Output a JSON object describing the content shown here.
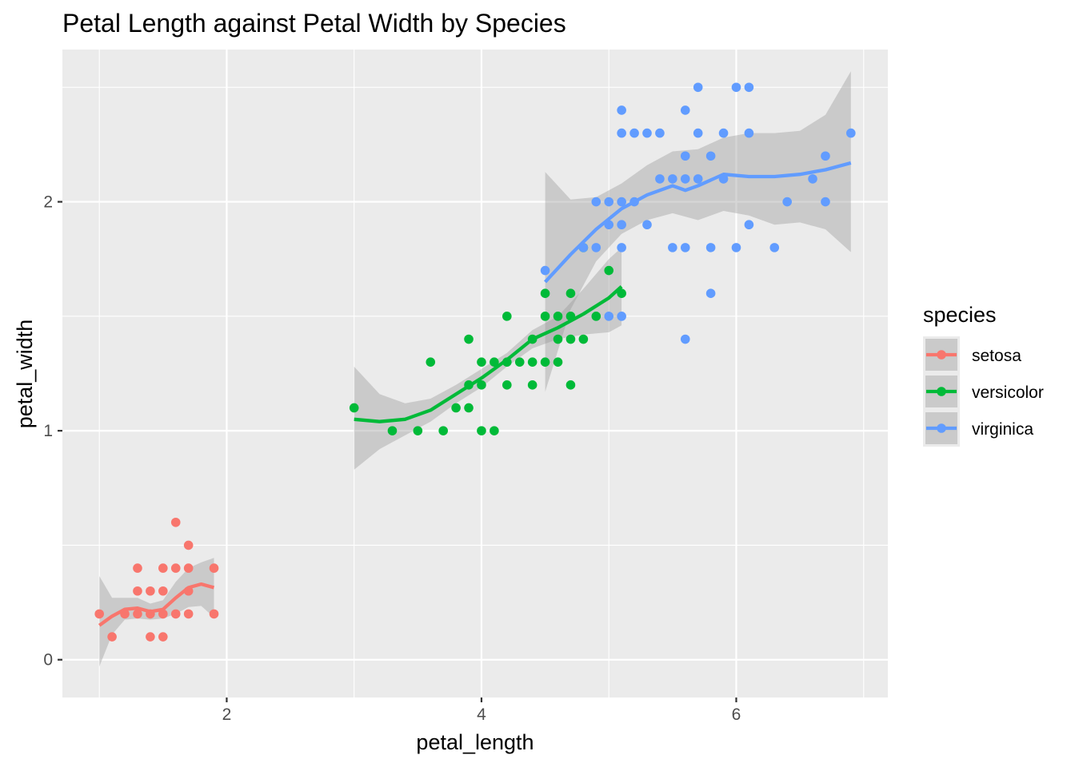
{
  "chart_data": {
    "type": "scatter",
    "title": "Petal Length against Petal Width by Species",
    "xlabel": "petal_length",
    "ylabel": "petal_width",
    "xlim": [
      0.71,
      7.19
    ],
    "ylim": [
      -0.165,
      2.665
    ],
    "x_ticks": [
      2,
      4,
      6
    ],
    "y_ticks": [
      0,
      1,
      2
    ],
    "x_tick_labels": [
      "2",
      "4",
      "6"
    ],
    "y_tick_labels": [
      "0",
      "1",
      "2"
    ],
    "grid": true,
    "legend": {
      "title": "species",
      "position": "right"
    },
    "series": [
      {
        "name": "setosa",
        "color": "#F8766D",
        "points": [
          [
            1.0,
            0.2
          ],
          [
            1.1,
            0.1
          ],
          [
            1.2,
            0.2
          ],
          [
            1.3,
            0.4
          ],
          [
            1.3,
            0.3
          ],
          [
            1.3,
            0.2
          ],
          [
            1.4,
            0.3
          ],
          [
            1.4,
            0.2
          ],
          [
            1.4,
            0.1
          ],
          [
            1.5,
            0.4
          ],
          [
            1.5,
            0.3
          ],
          [
            1.5,
            0.2
          ],
          [
            1.5,
            0.1
          ],
          [
            1.6,
            0.6
          ],
          [
            1.6,
            0.4
          ],
          [
            1.6,
            0.2
          ],
          [
            1.7,
            0.5
          ],
          [
            1.7,
            0.4
          ],
          [
            1.7,
            0.3
          ],
          [
            1.7,
            0.2
          ],
          [
            1.9,
            0.4
          ],
          [
            1.9,
            0.2
          ]
        ],
        "smooth": [
          [
            1.0,
            0.15
          ],
          [
            1.1,
            0.19
          ],
          [
            1.2,
            0.22
          ],
          [
            1.3,
            0.225
          ],
          [
            1.4,
            0.21
          ],
          [
            1.5,
            0.22
          ],
          [
            1.6,
            0.27
          ],
          [
            1.7,
            0.315
          ],
          [
            1.8,
            0.33
          ],
          [
            1.9,
            0.315
          ]
        ],
        "band_upper": [
          [
            1.0,
            0.365
          ],
          [
            1.1,
            0.27
          ],
          [
            1.2,
            0.27
          ],
          [
            1.3,
            0.27
          ],
          [
            1.4,
            0.245
          ],
          [
            1.5,
            0.26
          ],
          [
            1.6,
            0.34
          ],
          [
            1.7,
            0.4
          ],
          [
            1.8,
            0.425
          ],
          [
            1.9,
            0.445
          ]
        ],
        "band_lower": [
          [
            1.0,
            -0.03
          ],
          [
            1.1,
            0.11
          ],
          [
            1.2,
            0.175
          ],
          [
            1.3,
            0.18
          ],
          [
            1.4,
            0.175
          ],
          [
            1.5,
            0.18
          ],
          [
            1.6,
            0.2
          ],
          [
            1.7,
            0.23
          ],
          [
            1.8,
            0.235
          ],
          [
            1.9,
            0.185
          ]
        ]
      },
      {
        "name": "versicolor",
        "color": "#00BA38",
        "points": [
          [
            3.0,
            1.1
          ],
          [
            3.3,
            1.0
          ],
          [
            3.5,
            1.0
          ],
          [
            3.6,
            1.3
          ],
          [
            3.7,
            1.0
          ],
          [
            3.8,
            1.1
          ],
          [
            3.9,
            1.4
          ],
          [
            3.9,
            1.2
          ],
          [
            3.9,
            1.1
          ],
          [
            4.0,
            1.3
          ],
          [
            4.0,
            1.2
          ],
          [
            4.0,
            1.0
          ],
          [
            4.1,
            1.3
          ],
          [
            4.1,
            1.0
          ],
          [
            4.2,
            1.5
          ],
          [
            4.2,
            1.3
          ],
          [
            4.2,
            1.2
          ],
          [
            4.3,
            1.3
          ],
          [
            4.4,
            1.4
          ],
          [
            4.4,
            1.3
          ],
          [
            4.4,
            1.2
          ],
          [
            4.5,
            1.6
          ],
          [
            4.5,
            1.5
          ],
          [
            4.5,
            1.3
          ],
          [
            4.6,
            1.5
          ],
          [
            4.6,
            1.4
          ],
          [
            4.6,
            1.3
          ],
          [
            4.7,
            1.6
          ],
          [
            4.7,
            1.5
          ],
          [
            4.7,
            1.4
          ],
          [
            4.7,
            1.2
          ],
          [
            4.8,
            1.4
          ],
          [
            4.8,
            1.8
          ],
          [
            4.9,
            1.5
          ],
          [
            5.0,
            1.7
          ],
          [
            5.1,
            1.6
          ]
        ],
        "smooth": [
          [
            3.0,
            1.05
          ],
          [
            3.2,
            1.04
          ],
          [
            3.4,
            1.05
          ],
          [
            3.6,
            1.09
          ],
          [
            3.8,
            1.16
          ],
          [
            4.0,
            1.23
          ],
          [
            4.2,
            1.31
          ],
          [
            4.4,
            1.4
          ],
          [
            4.6,
            1.45
          ],
          [
            4.8,
            1.51
          ],
          [
            5.0,
            1.58
          ],
          [
            5.1,
            1.63
          ]
        ],
        "band_upper": [
          [
            3.0,
            1.28
          ],
          [
            3.2,
            1.16
          ],
          [
            3.4,
            1.12
          ],
          [
            3.6,
            1.14
          ],
          [
            3.8,
            1.2
          ],
          [
            4.0,
            1.27
          ],
          [
            4.2,
            1.34
          ],
          [
            4.4,
            1.44
          ],
          [
            4.6,
            1.5
          ],
          [
            4.8,
            1.62
          ],
          [
            5.0,
            1.75
          ],
          [
            5.1,
            1.8
          ]
        ],
        "band_lower": [
          [
            3.0,
            0.83
          ],
          [
            3.2,
            0.92
          ],
          [
            3.4,
            0.98
          ],
          [
            3.6,
            1.04
          ],
          [
            3.8,
            1.12
          ],
          [
            4.0,
            1.19
          ],
          [
            4.2,
            1.28
          ],
          [
            4.4,
            1.36
          ],
          [
            4.6,
            1.4
          ],
          [
            4.8,
            1.42
          ],
          [
            5.0,
            1.43
          ],
          [
            5.1,
            1.46
          ]
        ]
      },
      {
        "name": "virginica",
        "color": "#619CFF",
        "points": [
          [
            4.5,
            1.7
          ],
          [
            4.8,
            1.8
          ],
          [
            4.9,
            2.0
          ],
          [
            4.9,
            1.8
          ],
          [
            5.0,
            2.0
          ],
          [
            5.0,
            1.9
          ],
          [
            5.0,
            1.5
          ],
          [
            5.1,
            2.4
          ],
          [
            5.1,
            2.3
          ],
          [
            5.1,
            2.0
          ],
          [
            5.1,
            1.9
          ],
          [
            5.1,
            1.8
          ],
          [
            5.1,
            1.5
          ],
          [
            5.2,
            2.3
          ],
          [
            5.2,
            2.0
          ],
          [
            5.3,
            2.3
          ],
          [
            5.3,
            1.9
          ],
          [
            5.4,
            2.3
          ],
          [
            5.4,
            2.1
          ],
          [
            5.5,
            2.1
          ],
          [
            5.5,
            1.8
          ],
          [
            5.6,
            2.4
          ],
          [
            5.6,
            2.2
          ],
          [
            5.6,
            2.1
          ],
          [
            5.6,
            1.8
          ],
          [
            5.6,
            1.4
          ],
          [
            5.7,
            2.5
          ],
          [
            5.7,
            2.3
          ],
          [
            5.7,
            2.1
          ],
          [
            5.8,
            2.2
          ],
          [
            5.8,
            1.8
          ],
          [
            5.8,
            1.6
          ],
          [
            5.9,
            2.3
          ],
          [
            5.9,
            2.1
          ],
          [
            6.0,
            2.5
          ],
          [
            6.0,
            1.8
          ],
          [
            6.1,
            2.5
          ],
          [
            6.1,
            2.3
          ],
          [
            6.1,
            1.9
          ],
          [
            6.3,
            1.8
          ],
          [
            6.4,
            2.0
          ],
          [
            6.6,
            2.1
          ],
          [
            6.7,
            2.2
          ],
          [
            6.7,
            2.0
          ],
          [
            6.9,
            2.3
          ]
        ],
        "smooth": [
          [
            4.5,
            1.65
          ],
          [
            4.7,
            1.77
          ],
          [
            4.9,
            1.88
          ],
          [
            5.1,
            1.97
          ],
          [
            5.3,
            2.03
          ],
          [
            5.5,
            2.07
          ],
          [
            5.6,
            2.05
          ],
          [
            5.7,
            2.07
          ],
          [
            5.9,
            2.12
          ],
          [
            6.1,
            2.11
          ],
          [
            6.3,
            2.11
          ],
          [
            6.5,
            2.12
          ],
          [
            6.7,
            2.14
          ],
          [
            6.9,
            2.17
          ]
        ],
        "band_upper": [
          [
            4.5,
            2.13
          ],
          [
            4.7,
            2.01
          ],
          [
            4.9,
            2.02
          ],
          [
            5.1,
            2.08
          ],
          [
            5.3,
            2.16
          ],
          [
            5.5,
            2.22
          ],
          [
            5.7,
            2.23
          ],
          [
            5.9,
            2.28
          ],
          [
            6.1,
            2.3
          ],
          [
            6.3,
            2.3
          ],
          [
            6.5,
            2.31
          ],
          [
            6.7,
            2.38
          ],
          [
            6.9,
            2.57
          ]
        ],
        "band_lower": [
          [
            4.5,
            1.17
          ],
          [
            4.7,
            1.53
          ],
          [
            4.9,
            1.74
          ],
          [
            5.1,
            1.86
          ],
          [
            5.3,
            1.92
          ],
          [
            5.5,
            1.95
          ],
          [
            5.7,
            1.92
          ],
          [
            5.9,
            1.96
          ],
          [
            6.1,
            1.94
          ],
          [
            6.3,
            1.9
          ],
          [
            6.5,
            1.91
          ],
          [
            6.7,
            1.88
          ],
          [
            6.9,
            1.78
          ]
        ]
      }
    ]
  }
}
